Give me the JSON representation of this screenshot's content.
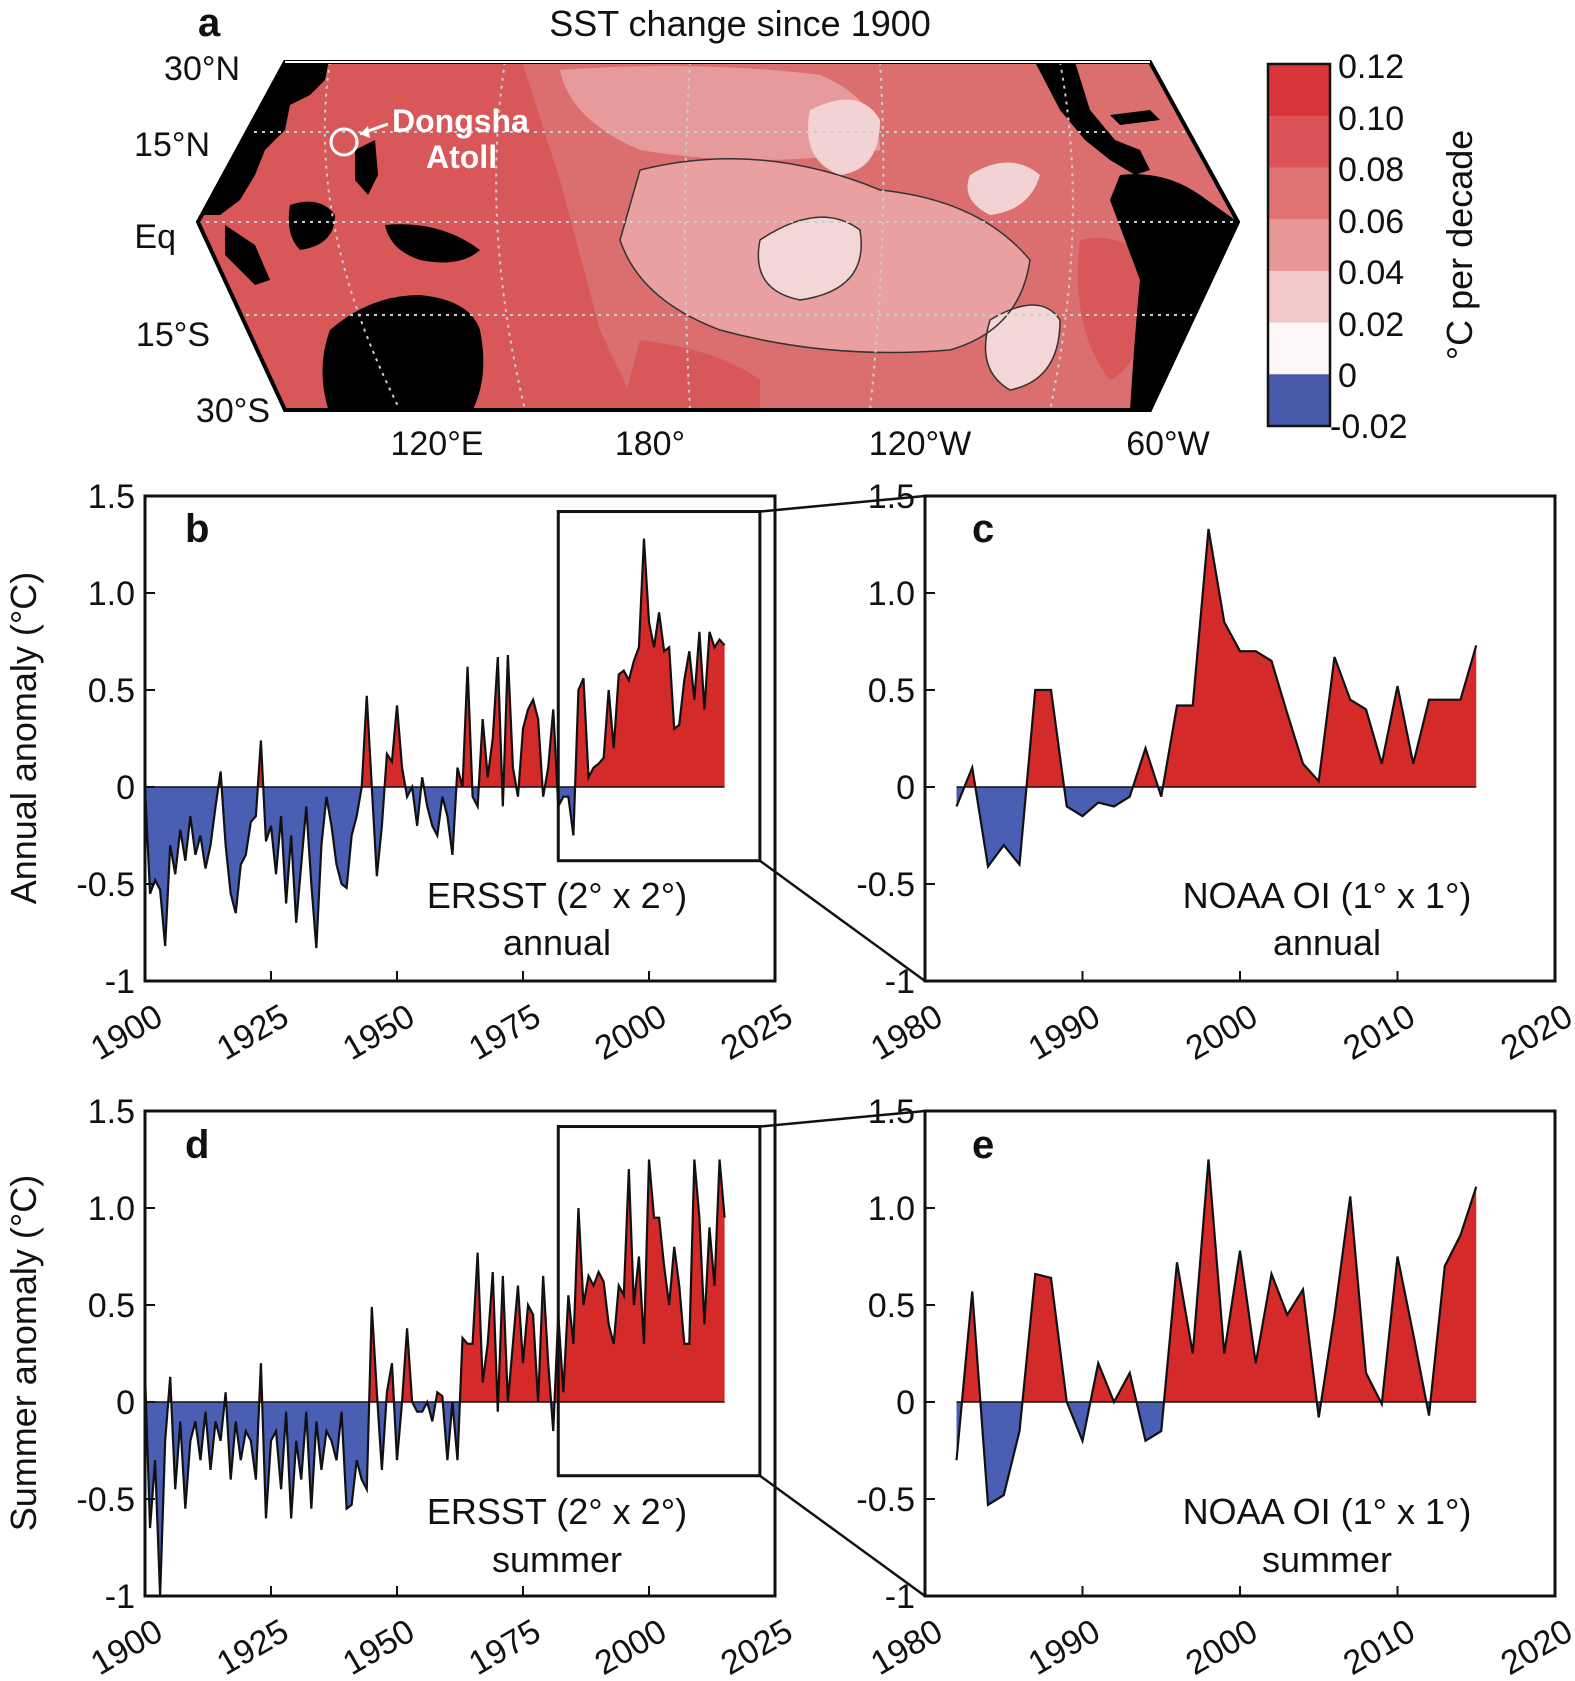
{
  "colors": {
    "positive": "#D42A2A",
    "negative": "#4A5FB3",
    "land": "#000000",
    "frame": "#111111"
  },
  "map": {
    "panel_label": "a",
    "title": "SST change since 1900",
    "lat_labels": [
      "30°N",
      "15°N",
      "Eq",
      "15°S",
      "30°S"
    ],
    "lon_labels": [
      "120°E",
      "180°",
      "120°W",
      "60°W"
    ],
    "site_label_line1": "Dongsha",
    "site_label_line2": "Atoll",
    "colorbar": {
      "label": "°C per decade",
      "ticks": [
        "0.12",
        "0.10",
        "0.08",
        "0.06",
        "0.04",
        "0.02",
        "0",
        "-0.02"
      ],
      "colors": [
        "#D7353A",
        "#DB5356",
        "#E07475",
        "#E89696",
        "#F2C7C8",
        "#FEF7F8",
        "#4A5AAA"
      ]
    }
  },
  "chart_data": [
    {
      "panel": "b",
      "type": "area",
      "title": "",
      "xlabel": "",
      "ylabel": "Annual anomaly (°C)",
      "annotation_line1": "ERSST (2° x 2°)",
      "annotation_line2": "annual",
      "xlim": [
        1900,
        2025
      ],
      "ylim": [
        -1,
        1.5
      ],
      "xticks": [
        "1900",
        "1925",
        "1950",
        "1975",
        "2000",
        "2025"
      ],
      "yticks": [
        "1.5",
        "1.0",
        "0.5",
        "0",
        "-0.5",
        "-1"
      ],
      "inset_box": {
        "x": [
          1982,
          2022
        ],
        "y": [
          -0.38,
          1.42
        ]
      },
      "x": [
        1900,
        1901,
        1902,
        1903,
        1904,
        1905,
        1906,
        1907,
        1908,
        1909,
        1910,
        1911,
        1912,
        1913,
        1914,
        1915,
        1916,
        1917,
        1918,
        1919,
        1920,
        1921,
        1922,
        1923,
        1924,
        1925,
        1926,
        1927,
        1928,
        1929,
        1930,
        1931,
        1932,
        1933,
        1934,
        1935,
        1936,
        1937,
        1938,
        1939,
        1940,
        1941,
        1942,
        1943,
        1944,
        1945,
        1946,
        1947,
        1948,
        1949,
        1950,
        1951,
        1952,
        1953,
        1954,
        1955,
        1956,
        1957,
        1958,
        1959,
        1960,
        1961,
        1962,
        1963,
        1964,
        1965,
        1966,
        1967,
        1968,
        1969,
        1970,
        1971,
        1972,
        1973,
        1974,
        1975,
        1976,
        1977,
        1978,
        1979,
        1980,
        1981,
        1982,
        1983,
        1984,
        1985,
        1986,
        1987,
        1988,
        1989,
        1990,
        1991,
        1992,
        1993,
        1994,
        1995,
        1996,
        1997,
        1998,
        1999,
        2000,
        2001,
        2002,
        2003,
        2004,
        2005,
        2006,
        2007,
        2008,
        2009,
        2010,
        2011,
        2012,
        2013,
        2014,
        2015
      ],
      "values": [
        0.0,
        -0.55,
        -0.48,
        -0.53,
        -0.82,
        -0.3,
        -0.45,
        -0.22,
        -0.38,
        -0.15,
        -0.35,
        -0.25,
        -0.42,
        -0.3,
        -0.1,
        0.08,
        -0.3,
        -0.55,
        -0.65,
        -0.4,
        -0.35,
        -0.18,
        -0.15,
        0.24,
        -0.28,
        -0.2,
        -0.45,
        -0.15,
        -0.6,
        -0.25,
        -0.7,
        -0.4,
        -0.1,
        -0.5,
        -0.83,
        -0.3,
        -0.05,
        -0.2,
        -0.4,
        -0.5,
        -0.52,
        -0.25,
        -0.15,
        0.0,
        0.47,
        0.0,
        -0.46,
        -0.2,
        0.17,
        0.13,
        0.42,
        0.1,
        -0.05,
        0.0,
        -0.2,
        0.05,
        -0.1,
        -0.2,
        -0.25,
        -0.05,
        -0.15,
        -0.35,
        0.1,
        0.0,
        0.62,
        -0.05,
        -0.1,
        0.35,
        0.05,
        0.25,
        0.67,
        -0.1,
        0.68,
        0.1,
        -0.05,
        0.3,
        0.4,
        0.45,
        0.35,
        -0.05,
        0.1,
        0.4,
        -0.1,
        -0.05,
        -0.05,
        -0.25,
        0.5,
        0.56,
        0.05,
        0.1,
        0.12,
        0.15,
        0.5,
        0.2,
        0.58,
        0.6,
        0.55,
        0.65,
        0.72,
        1.28,
        0.85,
        0.72,
        0.9,
        0.7,
        0.72,
        0.3,
        0.32,
        0.55,
        0.7,
        0.45,
        0.8,
        0.4,
        0.8,
        0.72,
        0.76,
        0.73
      ]
    },
    {
      "panel": "c",
      "type": "area",
      "title": "",
      "xlabel": "",
      "ylabel": "",
      "annotation_line1": "NOAA OI (1° x 1°)",
      "annotation_line2": "annual",
      "xlim": [
        1980,
        2020
      ],
      "ylim": [
        -1,
        1.5
      ],
      "xticks": [
        "1980",
        "1990",
        "2000",
        "2010",
        "2020"
      ],
      "yticks": [
        "1.5",
        "1.0",
        "0.5",
        "0",
        "-0.5",
        "-1"
      ],
      "x": [
        1982,
        1983,
        1984,
        1985,
        1986,
        1987,
        1988,
        1989,
        1990,
        1991,
        1992,
        1993,
        1994,
        1995,
        1996,
        1997,
        1998,
        1999,
        2000,
        2001,
        2002,
        2003,
        2004,
        2005,
        2006,
        2007,
        2008,
        2009,
        2010,
        2011,
        2012,
        2013,
        2014,
        2015
      ],
      "values": [
        -0.1,
        0.1,
        -0.41,
        -0.3,
        -0.4,
        0.5,
        0.5,
        -0.1,
        -0.15,
        -0.08,
        -0.1,
        -0.05,
        0.2,
        -0.05,
        0.42,
        0.42,
        1.33,
        0.85,
        0.7,
        0.7,
        0.65,
        0.38,
        0.12,
        0.03,
        0.67,
        0.45,
        0.4,
        0.12,
        0.52,
        0.12,
        0.45,
        0.45,
        0.45,
        0.73
      ]
    },
    {
      "panel": "d",
      "type": "area",
      "title": "",
      "xlabel": "",
      "ylabel": "Summer anomaly (°C)",
      "annotation_line1": "ERSST (2° x 2°)",
      "annotation_line2": "summer",
      "xlim": [
        1900,
        2025
      ],
      "ylim": [
        -1,
        1.5
      ],
      "xticks": [
        "1900",
        "1925",
        "1950",
        "1975",
        "2000",
        "2025"
      ],
      "yticks": [
        "1.5",
        "1.0",
        "0.5",
        "0",
        "-0.5",
        "-1"
      ],
      "inset_box": {
        "x": [
          1982,
          2022
        ],
        "y": [
          -0.38,
          1.42
        ]
      },
      "x": [
        1900,
        1901,
        1902,
        1903,
        1904,
        1905,
        1906,
        1907,
        1908,
        1909,
        1910,
        1911,
        1912,
        1913,
        1914,
        1915,
        1916,
        1917,
        1918,
        1919,
        1920,
        1921,
        1922,
        1923,
        1924,
        1925,
        1926,
        1927,
        1928,
        1929,
        1930,
        1931,
        1932,
        1933,
        1934,
        1935,
        1936,
        1937,
        1938,
        1939,
        1940,
        1941,
        1942,
        1943,
        1944,
        1945,
        1946,
        1947,
        1948,
        1949,
        1950,
        1951,
        1952,
        1953,
        1954,
        1955,
        1956,
        1957,
        1958,
        1959,
        1960,
        1961,
        1962,
        1963,
        1964,
        1965,
        1966,
        1967,
        1968,
        1969,
        1970,
        1971,
        1972,
        1973,
        1974,
        1975,
        1976,
        1977,
        1978,
        1979,
        1980,
        1981,
        1982,
        1983,
        1984,
        1985,
        1986,
        1987,
        1988,
        1989,
        1990,
        1991,
        1992,
        1993,
        1994,
        1995,
        1996,
        1997,
        1998,
        1999,
        2000,
        2001,
        2002,
        2003,
        2004,
        2005,
        2006,
        2007,
        2008,
        2009,
        2010,
        2011,
        2012,
        2013,
        2014,
        2015
      ],
      "values": [
        0.15,
        -0.65,
        -0.3,
        -1.0,
        -0.2,
        0.13,
        -0.45,
        -0.1,
        -0.55,
        -0.2,
        -0.1,
        -0.3,
        -0.05,
        -0.35,
        -0.1,
        -0.2,
        0.05,
        -0.4,
        -0.1,
        -0.3,
        -0.15,
        -0.2,
        -0.4,
        0.2,
        -0.6,
        -0.2,
        -0.15,
        -0.45,
        -0.05,
        -0.6,
        -0.2,
        -0.4,
        -0.05,
        -0.55,
        -0.1,
        -0.35,
        -0.15,
        -0.2,
        -0.3,
        -0.05,
        -0.55,
        -0.53,
        -0.3,
        -0.4,
        -0.45,
        0.49,
        0.05,
        -0.35,
        0.05,
        0.2,
        -0.3,
        0.0,
        0.38,
        0.0,
        -0.05,
        -0.05,
        0.0,
        -0.1,
        0.05,
        0.03,
        -0.3,
        0.0,
        -0.3,
        0.33,
        0.3,
        0.3,
        0.77,
        0.1,
        0.3,
        0.67,
        -0.05,
        0.65,
        0.0,
        0.3,
        0.6,
        0.2,
        0.5,
        0.45,
        0.0,
        0.65,
        0.2,
        -0.15,
        0.45,
        0.05,
        0.55,
        0.3,
        1.0,
        0.5,
        0.65,
        0.6,
        0.67,
        0.62,
        0.4,
        0.3,
        0.6,
        0.55,
        1.2,
        0.5,
        0.75,
        0.3,
        1.25,
        0.95,
        0.95,
        0.7,
        0.5,
        0.8,
        0.6,
        0.3,
        0.3,
        1.25,
        0.95,
        0.4,
        0.9,
        0.6,
        1.25,
        0.95
      ]
    },
    {
      "panel": "e",
      "type": "area",
      "title": "",
      "xlabel": "",
      "ylabel": "",
      "annotation_line1": "NOAA OI (1° x 1°)",
      "annotation_line2": "summer",
      "xlim": [
        1980,
        2020
      ],
      "ylim": [
        -1,
        1.5
      ],
      "xticks": [
        "1980",
        "1990",
        "2000",
        "2010",
        "2020"
      ],
      "yticks": [
        "1.5",
        "1.0",
        "0.5",
        "0",
        "-0.5",
        "-1"
      ],
      "x": [
        1982,
        1983,
        1984,
        1985,
        1986,
        1987,
        1988,
        1989,
        1990,
        1991,
        1992,
        1993,
        1994,
        1995,
        1996,
        1997,
        1998,
        1999,
        2000,
        2001,
        2002,
        2003,
        2004,
        2005,
        2006,
        2007,
        2008,
        2009,
        2010,
        2011,
        2012,
        2013,
        2014,
        2015
      ],
      "values": [
        -0.3,
        0.57,
        -0.53,
        -0.48,
        -0.15,
        0.66,
        0.64,
        0.0,
        -0.2,
        0.2,
        0.0,
        0.15,
        -0.2,
        -0.15,
        0.72,
        0.25,
        1.25,
        0.25,
        0.78,
        0.2,
        0.66,
        0.45,
        0.58,
        -0.08,
        0.45,
        1.06,
        0.15,
        -0.01,
        0.75,
        0.35,
        -0.07,
        0.7,
        0.86,
        1.11
      ]
    }
  ]
}
